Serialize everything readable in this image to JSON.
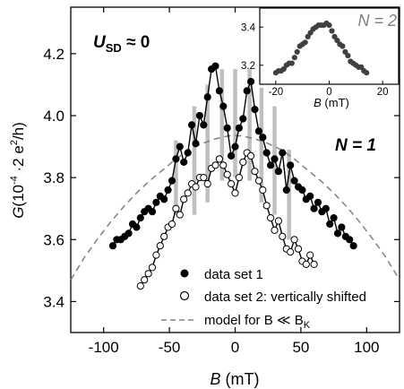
{
  "chart_data": [
    {
      "id": "main",
      "type": "scatter",
      "xlabel": {
        "var": "B",
        "unit": " (mT)"
      },
      "ylabel": {
        "var": "G",
        "unit": "(10",
        "exp": "-4",
        "mid": " ·2 e",
        "exp2": "2",
        "tail": "/h)"
      },
      "xlim": [
        -125,
        125
      ],
      "ylim": [
        3.3,
        4.35
      ],
      "xticks": [
        -100,
        -50,
        0,
        50,
        100
      ],
      "yticks": [
        3.4,
        3.6,
        3.8,
        4.0,
        4.2
      ],
      "ytick_labels": [
        "3.4",
        "3.6",
        "3.8",
        "4.0",
        "4.2"
      ],
      "grid": false,
      "annotations": {
        "usd_symbol": "U",
        "usd_sub": "SD",
        "usd_rest": " ≈ 0",
        "n_label": "N = 1"
      },
      "legend": {
        "position": "bottom-right",
        "items": [
          "data set 1",
          "data set 2: vertically shifted"
        ],
        "model_prefix": "model for B ≪ B",
        "model_sub": "K"
      },
      "series": [
        {
          "name": "data set 1",
          "marker": "filled-circle",
          "x": [
            -93,
            -90,
            -87,
            -84,
            -81,
            -78,
            -75,
            -72,
            -69,
            -66,
            -63,
            -60,
            -57,
            -54,
            -51,
            -48,
            -45,
            -42,
            -39,
            -36,
            -33,
            -30,
            -27,
            -24,
            -21,
            -18,
            -15,
            -12,
            -9,
            -6,
            -3,
            0,
            3,
            6,
            9,
            12,
            15,
            18,
            21,
            24,
            27,
            30,
            33,
            36,
            39,
            42,
            45,
            48,
            51,
            54,
            57,
            60,
            63,
            66,
            69,
            72,
            75,
            78,
            81,
            84,
            87,
            90
          ],
          "y": [
            3.58,
            3.6,
            3.6,
            3.61,
            3.62,
            3.65,
            3.64,
            3.67,
            3.69,
            3.7,
            3.69,
            3.72,
            3.74,
            3.73,
            3.76,
            3.79,
            3.86,
            3.9,
            3.85,
            3.88,
            3.97,
            3.91,
            4.0,
            3.97,
            4.06,
            4.15,
            4.16,
            4.08,
            4.03,
            3.96,
            3.87,
            3.9,
            3.96,
            3.99,
            4.08,
            4.11,
            4.02,
            3.95,
            3.93,
            3.88,
            3.84,
            3.86,
            3.82,
            3.88,
            3.76,
            3.84,
            3.79,
            3.77,
            3.76,
            3.73,
            3.74,
            3.7,
            3.72,
            3.69,
            3.7,
            3.65,
            3.67,
            3.62,
            3.64,
            3.61,
            3.6,
            3.58
          ]
        },
        {
          "name": "data set 2: vertically shifted",
          "marker": "open-circle",
          "x": [
            -72,
            -69,
            -66,
            -63,
            -60,
            -57,
            -54,
            -51,
            -48,
            -45,
            -42,
            -39,
            -36,
            -33,
            -30,
            -27,
            -24,
            -21,
            -18,
            -15,
            -12,
            -9,
            -6,
            -3,
            0,
            3,
            6,
            9,
            12,
            15,
            18,
            21,
            24,
            27,
            30,
            33,
            36,
            39,
            42,
            45,
            48,
            51,
            54,
            57,
            60
          ],
          "y": [
            3.45,
            3.47,
            3.49,
            3.51,
            3.55,
            3.58,
            3.61,
            3.64,
            3.65,
            3.7,
            3.68,
            3.73,
            3.75,
            3.78,
            3.77,
            3.8,
            3.8,
            3.78,
            3.83,
            3.84,
            3.86,
            3.84,
            3.81,
            3.78,
            3.75,
            3.8,
            3.85,
            3.88,
            3.87,
            3.82,
            3.79,
            3.76,
            3.71,
            3.67,
            3.63,
            3.66,
            3.61,
            3.57,
            3.56,
            3.6,
            3.57,
            3.53,
            3.52,
            3.55,
            3.52
          ]
        },
        {
          "name": "model for B ≪ BK",
          "type": "line",
          "style": "dashed",
          "color": "#808080",
          "x": [
            -125,
            -115,
            -105,
            -95,
            -85,
            -75,
            -65,
            -55,
            -45,
            -35,
            -25,
            -15,
            -5,
            5,
            15,
            25,
            35,
            45,
            55,
            65,
            75,
            85,
            95,
            105,
            115,
            125
          ],
          "y": [
            3.47,
            3.54,
            3.6,
            3.655,
            3.705,
            3.75,
            3.79,
            3.825,
            3.86,
            3.89,
            3.91,
            3.925,
            3.935,
            3.935,
            3.925,
            3.91,
            3.89,
            3.86,
            3.825,
            3.79,
            3.75,
            3.705,
            3.655,
            3.6,
            3.54,
            3.47
          ]
        }
      ],
      "bars": {
        "color": "#bfbfbf",
        "items": [
          {
            "x": -45,
            "y0": 3.68,
            "y1": 3.92
          },
          {
            "x": -31,
            "y0": 3.68,
            "y1": 4.03
          },
          {
            "x": -21,
            "y0": 3.72,
            "y1": 4.1
          },
          {
            "x": -10,
            "y0": 3.79,
            "y1": 4.15
          },
          {
            "x": 0,
            "y0": 3.8,
            "y1": 4.15
          },
          {
            "x": 11,
            "y0": 3.79,
            "y1": 4.15
          },
          {
            "x": 20,
            "y0": 3.72,
            "y1": 4.09
          },
          {
            "x": 30,
            "y0": 3.68,
            "y1": 4.03
          },
          {
            "x": 41,
            "y0": 3.6,
            "y1": 3.89
          }
        ]
      }
    },
    {
      "id": "inset",
      "type": "scatter",
      "annotation": "N = 2",
      "xlabel": {
        "var": "B",
        "unit": " (mT)"
      },
      "xlim": [
        -26,
        26
      ],
      "ylim": [
        3.1,
        3.5
      ],
      "xticks": [
        -20,
        0,
        20
      ],
      "yticks": [
        3.2,
        3.4
      ],
      "ytick_labels": [
        "3.2",
        "3.4"
      ],
      "series": [
        {
          "name": "",
          "marker": "filled-circle",
          "color": "#404040",
          "x": [
            -20,
            -19,
            -18,
            -17,
            -16,
            -15,
            -14,
            -13,
            -12,
            -11,
            -10,
            -9,
            -8,
            -7,
            -6,
            -5,
            -4,
            -3,
            -2,
            -1,
            0,
            1,
            2,
            3,
            4,
            5,
            6,
            7,
            8,
            9,
            10,
            11,
            12,
            13,
            14
          ],
          "y": [
            3.16,
            3.17,
            3.17,
            3.18,
            3.2,
            3.21,
            3.21,
            3.24,
            3.27,
            3.3,
            3.31,
            3.32,
            3.35,
            3.37,
            3.39,
            3.4,
            3.41,
            3.41,
            3.41,
            3.42,
            3.41,
            3.38,
            3.35,
            3.33,
            3.31,
            3.3,
            3.27,
            3.25,
            3.22,
            3.21,
            3.2,
            3.19,
            3.19,
            3.17,
            3.16
          ]
        }
      ]
    }
  ]
}
